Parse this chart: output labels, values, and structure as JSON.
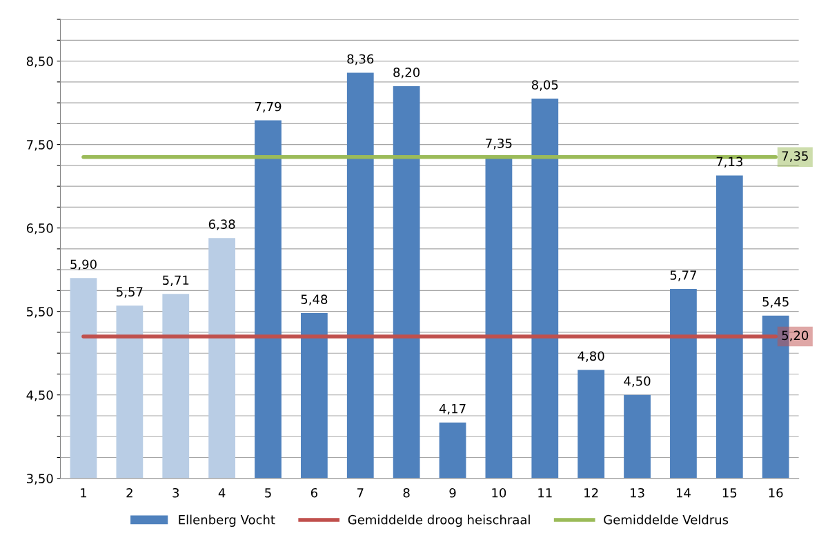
{
  "chart_data": {
    "type": "bar",
    "categories": [
      "1",
      "2",
      "3",
      "4",
      "5",
      "6",
      "7",
      "8",
      "9",
      "10",
      "11",
      "12",
      "13",
      "14",
      "15",
      "16"
    ],
    "series": [
      {
        "name": "Ellenberg Vocht",
        "color": "#4f81bd",
        "colors": [
          "#b9cde5",
          "#b9cde5",
          "#b9cde5",
          "#b9cde5",
          "#4f81bd",
          "#4f81bd",
          "#4f81bd",
          "#4f81bd",
          "#4f81bd",
          "#4f81bd",
          "#4f81bd",
          "#4f81bd",
          "#4f81bd",
          "#4f81bd",
          "#4f81bd",
          "#4f81bd"
        ],
        "values": [
          5.9,
          5.57,
          5.71,
          6.38,
          7.79,
          5.48,
          8.36,
          8.2,
          4.17,
          7.35,
          8.05,
          4.8,
          4.5,
          5.77,
          7.13,
          5.45
        ],
        "value_labels": [
          "5,90",
          "5,57",
          "5,71",
          "6,38",
          "7,79",
          "5,48",
          "8,36",
          "8,20",
          "4,17",
          "7,35",
          "8,05",
          "4,80",
          "4,50",
          "5,77",
          "7,13",
          "5,45"
        ]
      },
      {
        "name": "Gemiddelde droog heischraal",
        "type": "line",
        "color": "#c0504d",
        "values": [
          5.2,
          5.2,
          5.2,
          5.2,
          5.2,
          5.2,
          5.2,
          5.2,
          5.2,
          5.2,
          5.2,
          5.2,
          5.2,
          5.2,
          5.2,
          5.2
        ],
        "value_labels": [
          null,
          null,
          null,
          null,
          null,
          null,
          null,
          null,
          null,
          null,
          null,
          null,
          null,
          null,
          null,
          "5,20"
        ]
      },
      {
        "name": "Gemiddelde Veldrus",
        "type": "line",
        "color": "#9bbb59",
        "values": [
          7.35,
          7.35,
          7.35,
          7.35,
          7.35,
          7.35,
          7.35,
          7.35,
          7.35,
          7.35,
          7.35,
          7.35,
          7.35,
          7.35,
          7.35,
          7.35
        ],
        "value_labels": [
          null,
          null,
          null,
          null,
          null,
          null,
          null,
          null,
          null,
          null,
          null,
          null,
          null,
          null,
          null,
          "7,35"
        ]
      }
    ],
    "ylim": [
      3.5,
      9.0
    ],
    "yticks": [
      {
        "value": 3.5,
        "label": "3,50"
      },
      {
        "value": 3.75,
        "label": null
      },
      {
        "value": 4.0,
        "label": null
      },
      {
        "value": 4.25,
        "label": null
      },
      {
        "value": 4.5,
        "label": "4,50"
      },
      {
        "value": 4.75,
        "label": null
      },
      {
        "value": 5.0,
        "label": null
      },
      {
        "value": 5.25,
        "label": null
      },
      {
        "value": 5.5,
        "label": "5,50"
      },
      {
        "value": 5.75,
        "label": null
      },
      {
        "value": 6.0,
        "label": null
      },
      {
        "value": 6.25,
        "label": null
      },
      {
        "value": 6.5,
        "label": "6,50"
      },
      {
        "value": 6.75,
        "label": null
      },
      {
        "value": 7.0,
        "label": null
      },
      {
        "value": 7.25,
        "label": null
      },
      {
        "value": 7.5,
        "label": "7,50"
      },
      {
        "value": 7.75,
        "label": null
      },
      {
        "value": 8.0,
        "label": null
      },
      {
        "value": 8.25,
        "label": null
      },
      {
        "value": 8.5,
        "label": "8,50"
      },
      {
        "value": 8.75,
        "label": null
      },
      {
        "value": 9.0,
        "label": null
      }
    ],
    "grid": "y",
    "legend": "bottom"
  }
}
